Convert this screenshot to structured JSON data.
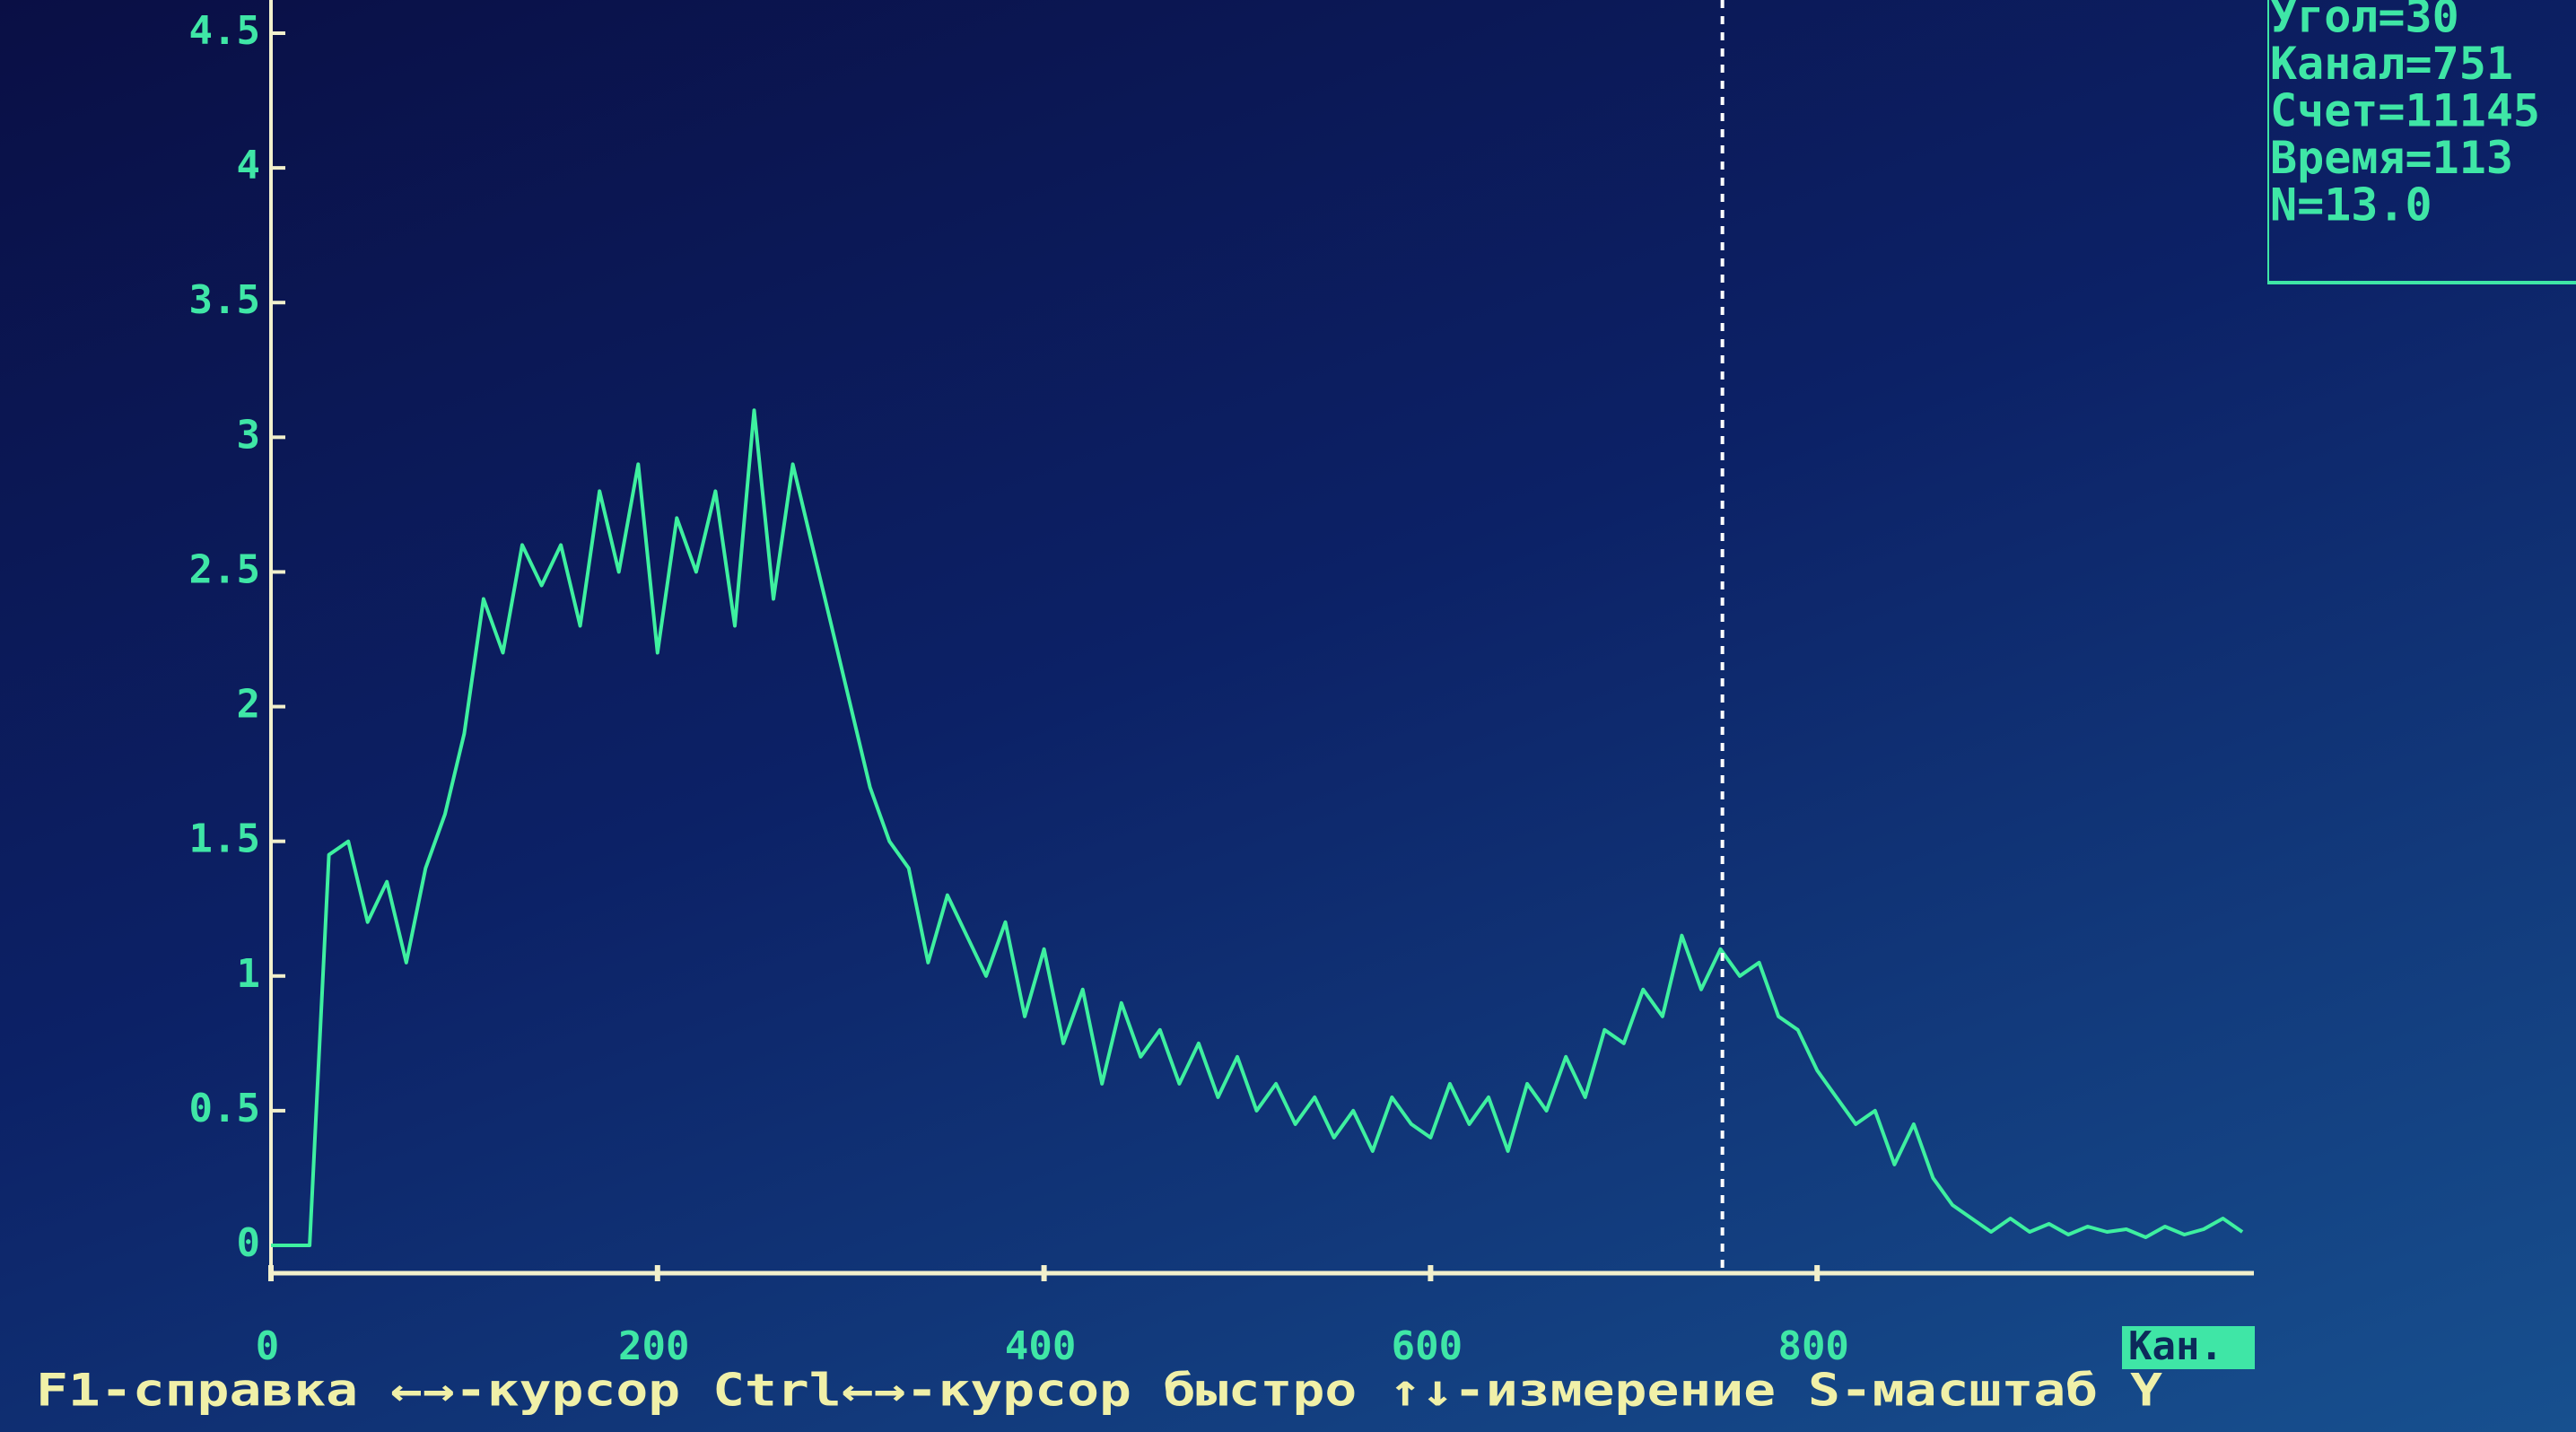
{
  "chart_data": {
    "type": "line",
    "x": [
      0,
      10,
      20,
      30,
      40,
      50,
      60,
      70,
      80,
      90,
      100,
      110,
      120,
      130,
      140,
      150,
      160,
      170,
      180,
      190,
      200,
      210,
      220,
      230,
      240,
      250,
      260,
      270,
      280,
      290,
      300,
      310,
      320,
      330,
      340,
      350,
      360,
      370,
      380,
      390,
      400,
      410,
      420,
      430,
      440,
      450,
      460,
      470,
      480,
      490,
      500,
      510,
      520,
      530,
      540,
      550,
      560,
      570,
      580,
      590,
      600,
      610,
      620,
      630,
      640,
      650,
      660,
      670,
      680,
      690,
      700,
      710,
      720,
      730,
      740,
      750,
      760,
      770,
      780,
      790,
      800,
      810,
      820,
      830,
      840,
      850,
      860,
      870,
      880,
      890,
      900,
      910,
      920,
      930,
      940,
      950,
      960,
      970,
      980,
      990,
      1000,
      1010,
      1020
    ],
    "values": [
      0,
      0,
      0,
      1.45,
      1.5,
      1.2,
      1.35,
      1.05,
      1.4,
      1.6,
      1.9,
      2.4,
      2.2,
      2.6,
      2.45,
      2.6,
      2.3,
      2.8,
      2.5,
      2.9,
      2.2,
      2.7,
      2.5,
      2.8,
      2.3,
      3.1,
      2.4,
      2.9,
      2.6,
      2.3,
      2.0,
      1.7,
      1.5,
      1.4,
      1.05,
      1.3,
      1.15,
      1.0,
      1.2,
      0.85,
      1.1,
      0.75,
      0.95,
      0.6,
      0.9,
      0.7,
      0.8,
      0.6,
      0.75,
      0.55,
      0.7,
      0.5,
      0.6,
      0.45,
      0.55,
      0.4,
      0.5,
      0.35,
      0.55,
      0.45,
      0.4,
      0.6,
      0.45,
      0.55,
      0.35,
      0.6,
      0.5,
      0.7,
      0.55,
      0.8,
      0.75,
      0.95,
      0.85,
      1.15,
      0.95,
      1.1,
      1.0,
      1.05,
      0.85,
      0.8,
      0.65,
      0.55,
      0.45,
      0.5,
      0.3,
      0.45,
      0.25,
      0.15,
      0.1,
      0.05,
      0.1,
      0.05,
      0.08,
      0.04,
      0.07,
      0.05,
      0.06,
      0.03,
      0.07,
      0.04,
      0.06,
      0.1,
      0.05
    ],
    "color": "#3ef0a0",
    "xlabel": "Кан.",
    "xlim": [
      0,
      1026
    ],
    "xticks": [
      0,
      200,
      400,
      600,
      800
    ],
    "ylim": [
      0,
      4.5
    ],
    "yticks": [
      0,
      0.5,
      1,
      1.5,
      2,
      2.5,
      3,
      3.5,
      4,
      4.5
    ],
    "cursor": 751,
    "info": [
      "Угол=30",
      "Канал=751",
      "Счет=11145",
      "Время=113",
      "N=13.0"
    ],
    "help": "F1-справка ←→-курсор Ctrl←→-курсор быстро ↑↓-измерение S-масштаб Y"
  }
}
